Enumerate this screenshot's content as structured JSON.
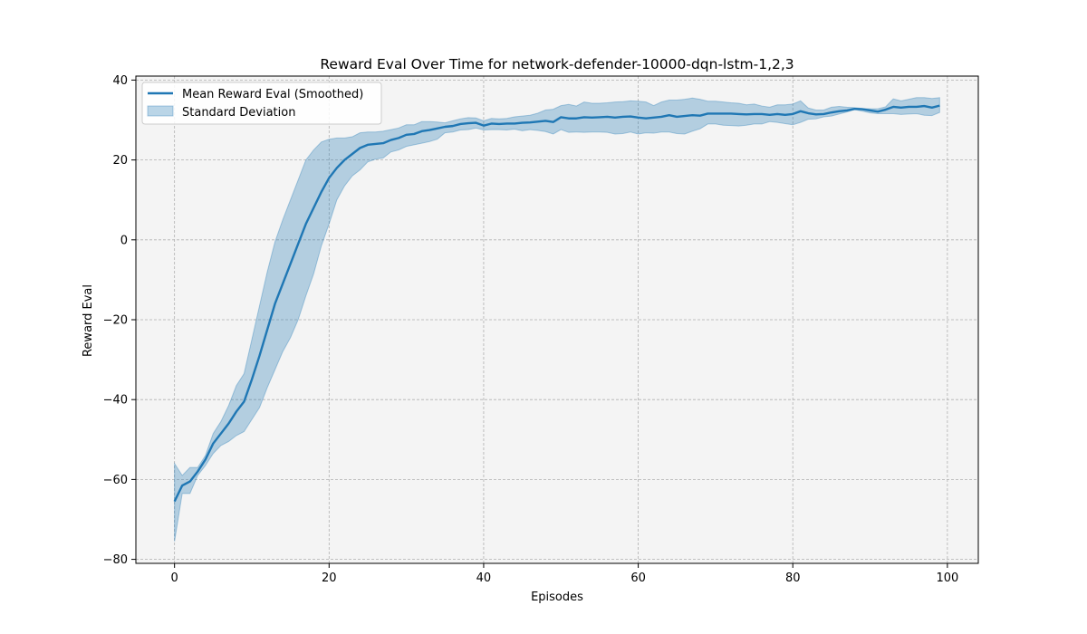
{
  "chart_data": {
    "type": "line",
    "title": "Reward Eval Over Time for network-defender-10000-dqn-lstm-1,2,3",
    "xlabel": "Episodes",
    "ylabel": "Reward Eval",
    "xlim": [
      -5,
      104
    ],
    "ylim": [
      -81,
      41
    ],
    "xticks": [
      0,
      20,
      40,
      60,
      80,
      100
    ],
    "yticks": [
      -80,
      -60,
      -40,
      -20,
      0,
      20,
      40
    ],
    "grid": true,
    "legend_position": "top-left",
    "plot_background": "#f4f4f4",
    "x": [
      0,
      1,
      2,
      3,
      4,
      5,
      6,
      7,
      8,
      9,
      10,
      11,
      12,
      13,
      14,
      15,
      16,
      17,
      18,
      19,
      20,
      21,
      22,
      23,
      24,
      25,
      26,
      27,
      28,
      29,
      30,
      31,
      32,
      33,
      34,
      35,
      36,
      37,
      38,
      39,
      40,
      41,
      42,
      43,
      44,
      45,
      46,
      47,
      48,
      49,
      50,
      51,
      52,
      53,
      54,
      55,
      56,
      57,
      58,
      59,
      60,
      61,
      62,
      63,
      64,
      65,
      66,
      67,
      68,
      69,
      70,
      71,
      72,
      73,
      74,
      75,
      76,
      77,
      78,
      79,
      80,
      81,
      82,
      83,
      84,
      85,
      86,
      87,
      88,
      89,
      90,
      91,
      92,
      93,
      94,
      95,
      96,
      97,
      98,
      99
    ],
    "series": [
      {
        "name": "Mean Reward Eval (Smoothed)",
        "color": "#1f77b4",
        "values": [
          -65.5,
          -61.5,
          -60.5,
          -58,
          -55,
          -51,
          -48.5,
          -46,
          -43,
          -40.5,
          -35,
          -29,
          -22.5,
          -16,
          -11,
          -6,
          -1,
          4,
          8,
          12,
          15.5,
          18,
          20,
          21.5,
          23,
          23.8,
          24,
          24.2,
          25,
          25.5,
          26.3,
          26.5,
          27.2,
          27.5,
          27.9,
          28.3,
          28.5,
          29,
          29.2,
          29.3,
          28.6,
          29.1,
          29,
          29.1,
          29.1,
          29.3,
          29.4,
          29.6,
          29.8,
          29.5,
          30.7,
          30.4,
          30.4,
          30.7,
          30.6,
          30.7,
          30.8,
          30.6,
          30.8,
          30.9,
          30.6,
          30.4,
          30.6,
          30.8,
          31.2,
          30.8,
          31,
          31.2,
          31.1,
          31.6,
          31.6,
          31.6,
          31.6,
          31.5,
          31.4,
          31.5,
          31.5,
          31.3,
          31.5,
          31.3,
          31.5,
          32.2,
          31.7,
          31.4,
          31.5,
          31.9,
          32.2,
          32.4,
          32.8,
          32.7,
          32.4,
          32.1,
          32.6,
          33.3,
          33.1,
          33.3,
          33.3,
          33.5,
          33.1,
          33.6
        ]
      }
    ],
    "band": {
      "name": "Standard Deviation",
      "color": "#1f77b4",
      "opacity": 0.3,
      "upper": [
        -56,
        -59,
        -57,
        -57,
        -54,
        -48.5,
        -45.5,
        -41.5,
        -36.5,
        -33.5,
        -25,
        -16.5,
        -8,
        -0.5,
        5,
        10,
        15,
        20,
        22.5,
        24.5,
        25.2,
        25.5,
        25.5,
        25.8,
        26.8,
        27,
        27,
        27.2,
        27.6,
        28,
        28.8,
        28.8,
        29.6,
        29.6,
        29.5,
        29.3,
        29.8,
        30.3,
        30.6,
        30.5,
        29.8,
        30.4,
        30.3,
        30.4,
        30.8,
        31,
        31.2,
        31.7,
        32.5,
        32.7,
        33.6,
        33.9,
        33.5,
        34.5,
        34.2,
        34.2,
        34.3,
        34.5,
        34.6,
        34.8,
        34.7,
        34.5,
        33.6,
        34.5,
        35,
        35,
        35.2,
        35.5,
        35.2,
        34.7,
        34.7,
        34.5,
        34.3,
        34.2,
        33.8,
        34,
        33.5,
        33.2,
        33.8,
        33.8,
        34,
        34.8,
        33,
        32.5,
        32.5,
        33.2,
        33.4,
        33.2,
        33.1,
        32.9,
        32.8,
        32.8,
        33.3,
        35.3,
        34.8,
        35.2,
        35.6,
        35.6,
        35.4,
        35.6
      ],
      "lower": [
        -75.5,
        -63.5,
        -63.5,
        -59,
        -56.5,
        -53.5,
        -51.5,
        -50.5,
        -49,
        -48,
        -45,
        -42,
        -37,
        -32.5,
        -28,
        -24.5,
        -20,
        -14,
        -8.5,
        -1.5,
        4,
        10,
        13.5,
        16,
        17.5,
        19.5,
        20.2,
        20.5,
        22,
        22.5,
        23.4,
        23.8,
        24.2,
        24.6,
        25.2,
        26.8,
        27,
        27.5,
        27.6,
        28,
        27.5,
        27.6,
        27.6,
        27.5,
        27.7,
        27.3,
        27.6,
        27.4,
        27.1,
        26.5,
        27.6,
        26.9,
        27,
        26.9,
        27,
        27,
        26.9,
        26.5,
        26.6,
        27,
        26.5,
        26.8,
        26.7,
        27,
        27,
        26.6,
        26.5,
        27.2,
        27.8,
        29,
        29,
        28.7,
        28.6,
        28.5,
        28.7,
        29,
        29,
        29.6,
        29.4,
        29.1,
        28.8,
        29.4,
        30.2,
        30.3,
        30.8,
        31,
        31.5,
        32,
        32.6,
        32.2,
        31.8,
        31.6,
        31.6,
        31.6,
        31.4,
        31.5,
        31.6,
        31.2,
        31.1,
        31.9
      ]
    },
    "legend": [
      "Mean Reward Eval (Smoothed)",
      "Standard Deviation"
    ]
  }
}
